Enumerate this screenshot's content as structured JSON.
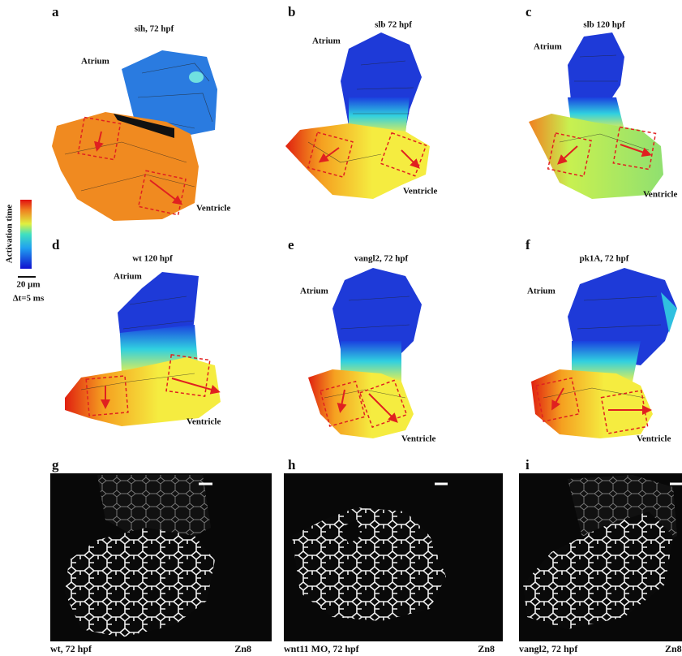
{
  "panels": [
    {
      "letter": "a",
      "title": "sih, 72 hpf",
      "atrium": "Atrium",
      "ventricle": "Ventricle"
    },
    {
      "letter": "b",
      "title": "slb 72 hpf",
      "atrium": "Atrium",
      "ventricle": "Ventricle"
    },
    {
      "letter": "c",
      "title": "slb 120 hpf",
      "atrium": "Atrium",
      "ventricle": "Ventricle"
    },
    {
      "letter": "d",
      "title": "wt 120 hpf",
      "atrium": "Atrium",
      "ventricle": "Ventricle"
    },
    {
      "letter": "e",
      "title": "vangl2, 72 hpf",
      "atrium": "Atrium",
      "ventricle": "Ventricle"
    },
    {
      "letter": "f",
      "title": "pk1A, 72 hpf",
      "atrium": "Atrium",
      "ventricle": "Ventricle"
    }
  ],
  "colorbar": {
    "label": "Activation time",
    "scale": "20 μm",
    "interval": "Δt=5 ms"
  },
  "micrographs": [
    {
      "letter": "g",
      "caption": "wt, 72 hpf",
      "stain": "Zn8"
    },
    {
      "letter": "h",
      "caption": "wnt11 MO, 72 hpf",
      "stain": "Zn8"
    },
    {
      "letter": "i",
      "caption": "vangl2, 72 hpf",
      "stain": "Zn8"
    }
  ]
}
